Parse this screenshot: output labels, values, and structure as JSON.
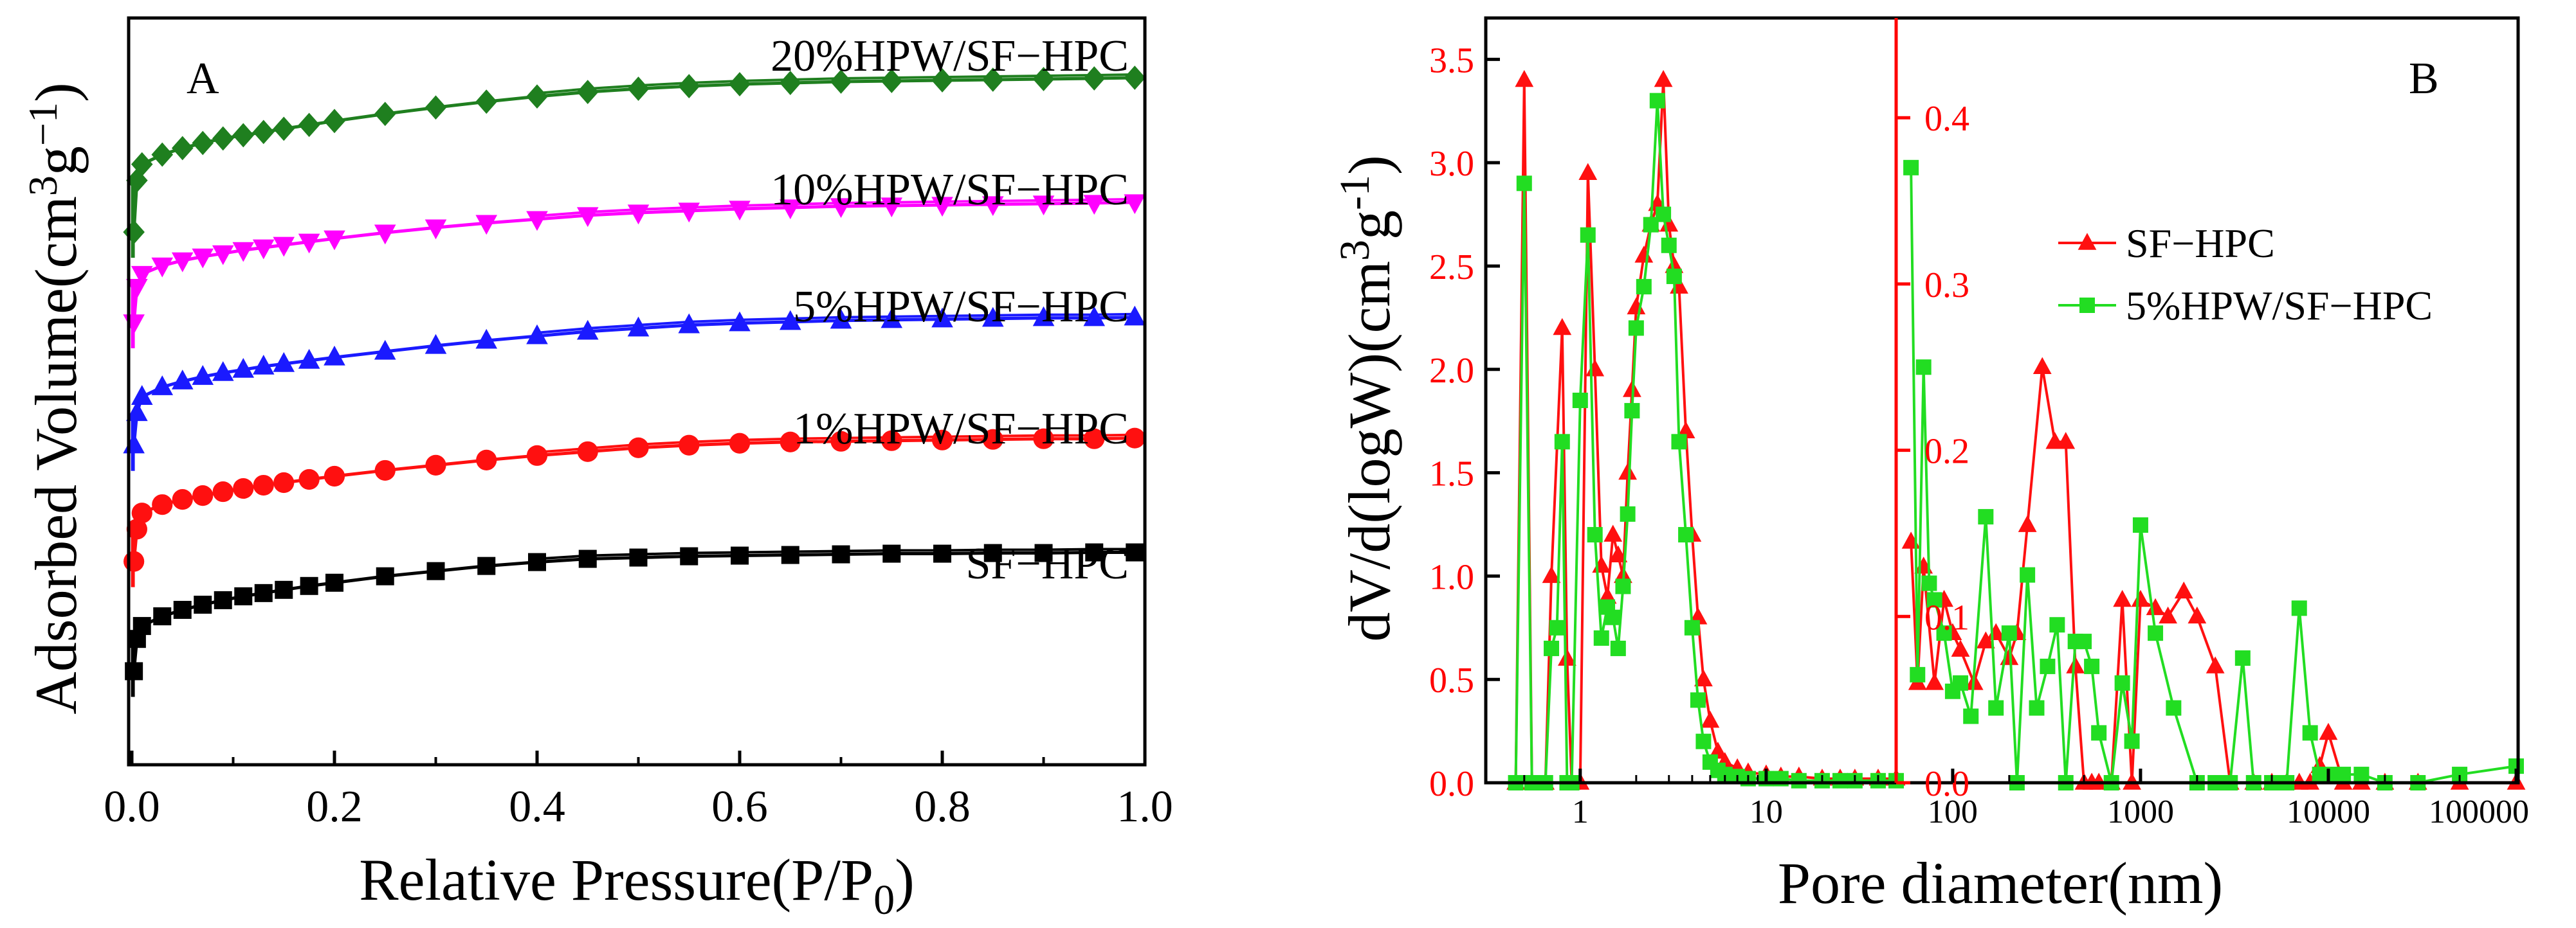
{
  "colors": {
    "black": "#000000",
    "red": "#ff1010",
    "blue": "#1a1aff",
    "magenta": "#ff00ff",
    "green": "#1f7f1f",
    "lime": "#22dd22",
    "axis_red": "#ff0000"
  },
  "chart_data": [
    {
      "type": "line",
      "panel_label": "A",
      "xlabel": "Relative Pressure(P/P",
      "xlabel_sub": "0",
      "xlabel_end": ")",
      "ylabel": "Adsorbed Volume(cm",
      "ylabel_sup1": "3",
      "ylabel_mid": "g",
      "ylabel_sup2": "−1",
      "ylabel_end": ")",
      "xlim": [
        0.0,
        1.0
      ],
      "ylim": [
        0,
        100
      ],
      "xticks": [
        "0.0",
        "0.2",
        "0.4",
        "0.6",
        "0.8",
        "1.0"
      ],
      "y_ticks_labeled": false,
      "series": [
        {
          "name": "SF−HPC",
          "marker": "square",
          "color": "black",
          "offset": 0,
          "x": [
            0.002,
            0.005,
            0.01,
            0.03,
            0.05,
            0.07,
            0.09,
            0.11,
            0.13,
            0.15,
            0.175,
            0.2,
            0.25,
            0.3,
            0.35,
            0.4,
            0.45,
            0.5,
            0.55,
            0.6,
            0.65,
            0.7,
            0.75,
            0.8,
            0.85,
            0.9,
            0.95,
            0.99
          ],
          "y": [
            12,
            17,
            19,
            20.5,
            21.5,
            22.3,
            23,
            23.6,
            24.1,
            24.6,
            25.2,
            25.7,
            26.7,
            27.5,
            28.3,
            28.9,
            29.4,
            29.6,
            29.8,
            29.9,
            30,
            30.1,
            30.2,
            30.2,
            30.3,
            30.3,
            30.4,
            30.4
          ]
        },
        {
          "name": "1%HPW/SF−HPC",
          "marker": "circle",
          "color": "red",
          "offset": 0,
          "x": [
            0.002,
            0.005,
            0.01,
            0.03,
            0.05,
            0.07,
            0.09,
            0.11,
            0.13,
            0.15,
            0.175,
            0.2,
            0.25,
            0.3,
            0.35,
            0.4,
            0.45,
            0.5,
            0.55,
            0.6,
            0.65,
            0.7,
            0.75,
            0.8,
            0.85,
            0.9,
            0.95,
            0.99
          ],
          "y": [
            29,
            34,
            36.5,
            37.8,
            38.6,
            39.2,
            39.8,
            40.3,
            40.8,
            41.2,
            41.7,
            42.2,
            43.1,
            43.9,
            44.7,
            45.4,
            46,
            46.6,
            47,
            47.3,
            47.5,
            47.6,
            47.7,
            47.8,
            47.9,
            48,
            48,
            48.1
          ]
        },
        {
          "name": "5%HPW/SF−HPC",
          "marker": "triangle-up",
          "color": "blue",
          "offset": 0,
          "x": [
            0.002,
            0.005,
            0.01,
            0.03,
            0.05,
            0.07,
            0.09,
            0.11,
            0.13,
            0.15,
            0.175,
            0.2,
            0.25,
            0.3,
            0.35,
            0.4,
            0.45,
            0.5,
            0.55,
            0.6,
            0.65,
            0.7,
            0.75,
            0.8,
            0.85,
            0.9,
            0.95,
            0.99
          ],
          "y": [
            47,
            52,
            54.5,
            56,
            56.9,
            57.6,
            58.2,
            58.7,
            59.2,
            59.6,
            60.1,
            60.6,
            61.5,
            62.4,
            63.2,
            63.9,
            64.6,
            65.1,
            65.6,
            65.9,
            66.1,
            66.3,
            66.4,
            66.5,
            66.6,
            66.7,
            66.7,
            66.8
          ]
        },
        {
          "name": "10%HPW/SF−HPC",
          "marker": "triangle-down",
          "color": "magenta",
          "offset": 0,
          "x": [
            0.002,
            0.005,
            0.01,
            0.03,
            0.05,
            0.07,
            0.09,
            0.11,
            0.13,
            0.15,
            0.175,
            0.2,
            0.25,
            0.3,
            0.35,
            0.4,
            0.45,
            0.5,
            0.55,
            0.6,
            0.65,
            0.7,
            0.75,
            0.8,
            0.85,
            0.9,
            0.95,
            0.99
          ],
          "y": [
            66,
            71.5,
            73.5,
            74.8,
            75.6,
            76.2,
            76.7,
            77.2,
            77.6,
            78,
            78.5,
            79,
            79.9,
            80.7,
            81.4,
            82,
            82.6,
            83,
            83.3,
            83.6,
            83.8,
            84,
            84.1,
            84.2,
            84.3,
            84.4,
            84.5,
            84.6
          ]
        },
        {
          "name": "20%HPW/SF−HPC",
          "marker": "diamond",
          "color": "green",
          "offset": 0,
          "x": [
            0.002,
            0.005,
            0.01,
            0.03,
            0.05,
            0.07,
            0.09,
            0.11,
            0.13,
            0.15,
            0.175,
            0.2,
            0.25,
            0.3,
            0.35,
            0.4,
            0.45,
            0.5,
            0.55,
            0.6,
            0.65,
            0.7,
            0.75,
            0.8,
            0.85,
            0.9,
            0.95,
            0.99
          ],
          "y": [
            80,
            88,
            90.5,
            92,
            93,
            93.8,
            94.5,
            95,
            95.5,
            96,
            96.6,
            97.2,
            98.3,
            99.3,
            100.2,
            101,
            101.7,
            102.2,
            102.6,
            102.9,
            103.1,
            103.3,
            103.4,
            103.5,
            103.6,
            103.7,
            103.8,
            103.9
          ]
        }
      ],
      "label_order": [
        "20%HPW/SF−HPC",
        "10%HPW/SF−HPC",
        "5%HPW/SF−HPC",
        "1%HPW/SF−HPC",
        "SF−HPC"
      ]
    },
    {
      "type": "line",
      "panel_label": "B",
      "xlabel": "Pore diameter(nm)",
      "ylabel": "dV/d(logW)(cm",
      "ylabel_sup1": "3",
      "ylabel_mid": "g",
      "ylabel_sup2": "-1",
      "ylabel_end": ")",
      "x_scale": "log",
      "break_at": 50,
      "left_xlim": [
        0.35,
        50
      ],
      "right_xlim": [
        50,
        100000
      ],
      "left_ylim": [
        0,
        3.7
      ],
      "right_ylim": [
        0,
        0.46
      ],
      "left_yticks": [
        "0.0",
        "0.5",
        "1.0",
        "1.5",
        "2.0",
        "2.5",
        "3.0",
        "3.5"
      ],
      "right_yticks": [
        "0.0",
        "0.1",
        "0.2",
        "0.3",
        "0.4"
      ],
      "left_xticks": [
        {
          "v": 1,
          "label": "1"
        },
        {
          "v": 10,
          "label": "10"
        }
      ],
      "right_xticks": [
        {
          "v": 100,
          "label": "100"
        },
        {
          "v": 1000,
          "label": "1000"
        },
        {
          "v": 10000,
          "label": "10000"
        },
        {
          "v": 100000,
          "label": "100000"
        }
      ],
      "legend_position": "center-right",
      "series": [
        {
          "name": "SF−HPC",
          "marker": "triangle-up",
          "color": "red",
          "left_x": [
            0.45,
            0.5,
            0.55,
            0.65,
            0.7,
            0.8,
            0.85,
            0.9,
            1.0,
            1.1,
            1.2,
            1.3,
            1.4,
            1.5,
            1.6,
            1.7,
            1.8,
            1.9,
            2.0,
            2.2,
            2.4,
            2.6,
            2.8,
            3.0,
            3.2,
            3.4,
            3.7,
            4.0,
            4.3,
            4.6,
            5.0,
            5.5,
            6,
            7,
            8,
            10,
            12,
            15,
            20,
            25,
            30,
            40,
            50
          ],
          "left_y": [
            0.0,
            3.4,
            0.0,
            0.0,
            1.0,
            2.2,
            0.6,
            0.0,
            0.0,
            2.95,
            2.0,
            1.05,
            0.9,
            1.2,
            1.1,
            1.0,
            1.5,
            1.9,
            2.3,
            2.55,
            2.7,
            2.8,
            3.4,
            2.7,
            2.5,
            2.4,
            1.7,
            1.2,
            0.8,
            0.5,
            0.3,
            0.15,
            0.1,
            0.07,
            0.05,
            0.04,
            0.03,
            0.03,
            0.02,
            0.02,
            0.02,
            0.02,
            0.02
          ],
          "right_x": [
            60,
            65,
            70,
            80,
            90,
            100,
            110,
            130,
            150,
            170,
            200,
            220,
            250,
            300,
            350,
            400,
            450,
            500,
            550,
            600,
            700,
            800,
            900,
            1000,
            1200,
            1400,
            1700,
            2000,
            2500,
            3000,
            4000,
            5000,
            6000,
            7000,
            8000,
            9000,
            10000,
            12000,
            15000,
            20000,
            30000,
            50000,
            100000
          ],
          "right_y": [
            0.145,
            0.06,
            0.13,
            0.06,
            0.11,
            0.09,
            0.08,
            0.06,
            0.085,
            0.09,
            0.075,
            0.09,
            0.155,
            0.25,
            0.205,
            0.205,
            0.07,
            0.0,
            0.0,
            0.0,
            0.0,
            0.11,
            0.0,
            0.11,
            0.105,
            0.1,
            0.115,
            0.1,
            0.07,
            0.0,
            0.0,
            0.0,
            0.0,
            0.0,
            0.0,
            0.01,
            0.03,
            0.0,
            0.0,
            0.0,
            0.0,
            0.0,
            0.0
          ]
        },
        {
          "name": "5%HPW/SF−HPC",
          "marker": "square",
          "color": "lime",
          "left_x": [
            0.45,
            0.5,
            0.55,
            0.65,
            0.7,
            0.75,
            0.8,
            0.85,
            0.9,
            1.0,
            1.1,
            1.2,
            1.3,
            1.4,
            1.5,
            1.6,
            1.7,
            1.8,
            1.9,
            2.0,
            2.2,
            2.4,
            2.6,
            2.8,
            3.0,
            3.2,
            3.4,
            3.7,
            4.0,
            4.3,
            4.6,
            5.0,
            5.5,
            6,
            7,
            8,
            10,
            12,
            15,
            20,
            25,
            30,
            40,
            50
          ],
          "left_y": [
            0.0,
            2.9,
            0.0,
            0.0,
            0.65,
            0.75,
            1.65,
            0.0,
            0.0,
            1.85,
            2.65,
            1.2,
            0.7,
            0.85,
            0.8,
            0.65,
            0.95,
            1.3,
            1.8,
            2.2,
            2.4,
            2.7,
            3.3,
            2.75,
            2.6,
            2.45,
            1.65,
            1.2,
            0.75,
            0.4,
            0.2,
            0.1,
            0.06,
            0.04,
            0.03,
            0.02,
            0.02,
            0.02,
            0.01,
            0.01,
            0.01,
            0.01,
            0.01,
            0.01
          ],
          "right_x": [
            60,
            65,
            70,
            75,
            80,
            90,
            100,
            110,
            125,
            150,
            170,
            200,
            220,
            250,
            280,
            320,
            360,
            400,
            450,
            500,
            550,
            600,
            700,
            800,
            900,
            1000,
            1200,
            1500,
            2000,
            2500,
            3000,
            3500,
            4000,
            5000,
            6000,
            7000,
            8000,
            9000,
            10000,
            12000,
            15000,
            20000,
            30000,
            50000,
            100000
          ],
          "right_y": [
            0.37,
            0.065,
            0.25,
            0.12,
            0.11,
            0.09,
            0.055,
            0.06,
            0.04,
            0.16,
            0.045,
            0.09,
            0.0,
            0.125,
            0.045,
            0.07,
            0.095,
            0.0,
            0.085,
            0.085,
            0.07,
            0.03,
            0.0,
            0.06,
            0.025,
            0.155,
            0.09,
            0.045,
            0.0,
            0.0,
            0.0,
            0.075,
            0.0,
            0.0,
            0.0,
            0.105,
            0.03,
            0.005,
            0.005,
            0.005,
            0.005,
            0.0,
            0.0,
            0.005,
            0.01
          ]
        }
      ]
    }
  ]
}
